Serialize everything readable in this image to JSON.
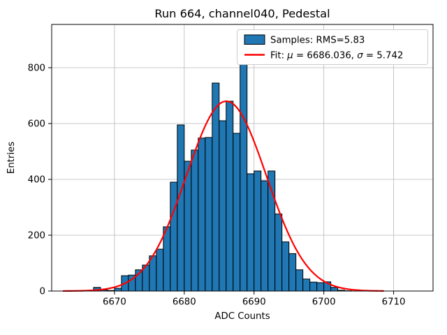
{
  "chart_data": {
    "type": "bar",
    "title": "Run 664, channel040, Pedestal",
    "xlabel": "ADC Counts",
    "ylabel": "Entries",
    "xlim": [
      6661.0,
      6715.65
    ],
    "ylim": [
      0,
      955
    ],
    "xticks": [
      6670,
      6680,
      6690,
      6700,
      6710
    ],
    "yticks": [
      0,
      200,
      400,
      600,
      800
    ],
    "grid": true,
    "legend_position": "upper right",
    "legend": {
      "samples_label": "Samples: RMS=5.83",
      "fit_prefix": "Fit: ",
      "fit_mu_symbol": "μ",
      "fit_mu_text": " = 6686.036, ",
      "fit_sigma_symbol": "σ",
      "fit_sigma_text": " = 5.742"
    },
    "histogram": {
      "bin_start": 6667,
      "bin_width": 1,
      "counts": [
        13,
        4,
        2,
        10,
        55,
        57,
        76,
        93,
        126,
        150,
        230,
        390,
        595,
        465,
        505,
        548,
        550,
        745,
        610,
        680,
        565,
        825,
        420,
        430,
        395,
        430,
        276,
        176,
        134,
        76,
        43,
        32,
        30,
        33,
        13,
        3,
        1
      ]
    },
    "fit": {
      "mu": 6686.036,
      "sigma": 5.742,
      "amplitude": 680,
      "draw_range": [
        6662.6,
        6708.8
      ]
    },
    "colors": {
      "bar_fill": "#1f77b4",
      "bar_edge": "#000000",
      "fit_line": "#ff0000",
      "grid": "#b8b8b8",
      "spine": "#000000",
      "legend_border": "#cccccc"
    }
  }
}
